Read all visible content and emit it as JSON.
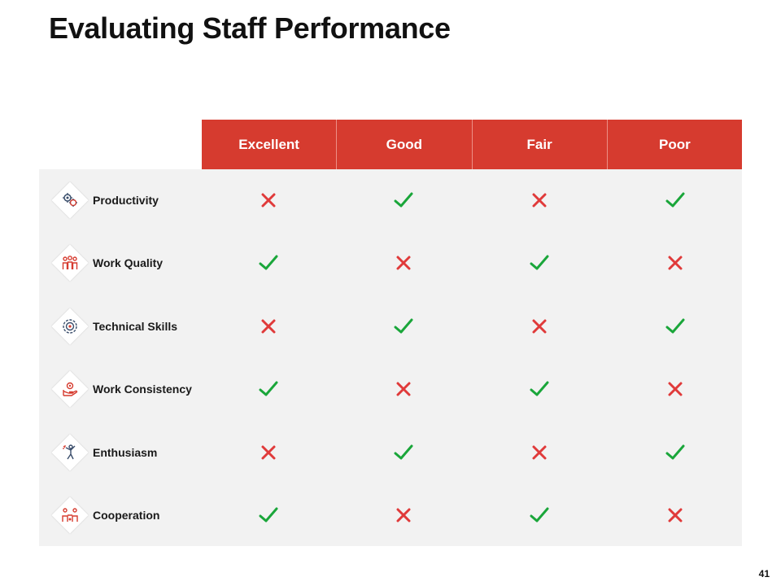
{
  "slide": {
    "title": "Evaluating Staff Performance",
    "page_number": "41"
  },
  "colors": {
    "accent": "#d63b2f",
    "check": "#1aa63a",
    "cross": "#e03a3a",
    "panel": "#f2f2f2"
  },
  "table": {
    "columns": [
      "Excellent",
      "Good",
      "Fair",
      "Poor"
    ],
    "rows": [
      {
        "label": "Productivity",
        "icon": "gears-icon",
        "marks": [
          "cross",
          "check",
          "cross",
          "check"
        ]
      },
      {
        "label": "Work Quality",
        "icon": "team-icon",
        "marks": [
          "check",
          "cross",
          "check",
          "cross"
        ]
      },
      {
        "label": "Technical Skills",
        "icon": "target-gear-icon",
        "marks": [
          "cross",
          "check",
          "cross",
          "check"
        ]
      },
      {
        "label": "Work Consistency",
        "icon": "hand-gear-icon",
        "marks": [
          "check",
          "cross",
          "check",
          "cross"
        ]
      },
      {
        "label": "Enthusiasm",
        "icon": "cheering-person-icon",
        "marks": [
          "cross",
          "check",
          "cross",
          "check"
        ]
      },
      {
        "label": "Cooperation",
        "icon": "people-connect-icon",
        "marks": [
          "check",
          "cross",
          "check",
          "cross"
        ]
      }
    ]
  }
}
